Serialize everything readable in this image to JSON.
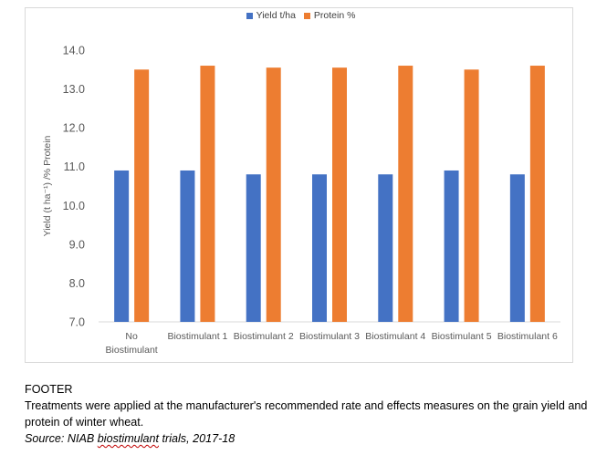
{
  "chart_data": {
    "type": "bar",
    "title": "",
    "ylabel": "Yield (t ha⁻¹) /% Protein",
    "xlabel": "",
    "ylim": [
      7.0,
      14.0
    ],
    "yticks": [
      "7.0",
      "8.0",
      "9.0",
      "10.0",
      "11.0",
      "12.0",
      "13.0",
      "14.0"
    ],
    "categories": [
      [
        "No",
        "Biostimulant"
      ],
      [
        "Biostimulant 1"
      ],
      [
        "Biostimulant 2"
      ],
      [
        "Biostimulant 3"
      ],
      [
        "Biostimulant 4"
      ],
      [
        "Biostimulant 5"
      ],
      [
        "Biostimulant 6"
      ]
    ],
    "series": [
      {
        "name": "Yield t/ha",
        "color": "#4472c4",
        "values": [
          10.9,
          10.9,
          10.8,
          10.8,
          10.8,
          10.9,
          10.8
        ]
      },
      {
        "name": "Protein %",
        "color": "#ed7d31",
        "values": [
          13.5,
          13.6,
          13.55,
          13.55,
          13.6,
          13.5,
          13.6
        ]
      }
    ],
    "grid": false,
    "legend_position": "top"
  },
  "footer": {
    "heading": "FOOTER",
    "note": "Treatments were applied at the manufacturer's recommended rate and effects measures on the grain yield and protein of winter wheat.",
    "source_prefix": "Source: NIAB ",
    "source_underlined": "biostimulant",
    "source_suffix": " trials, 2017-18"
  }
}
